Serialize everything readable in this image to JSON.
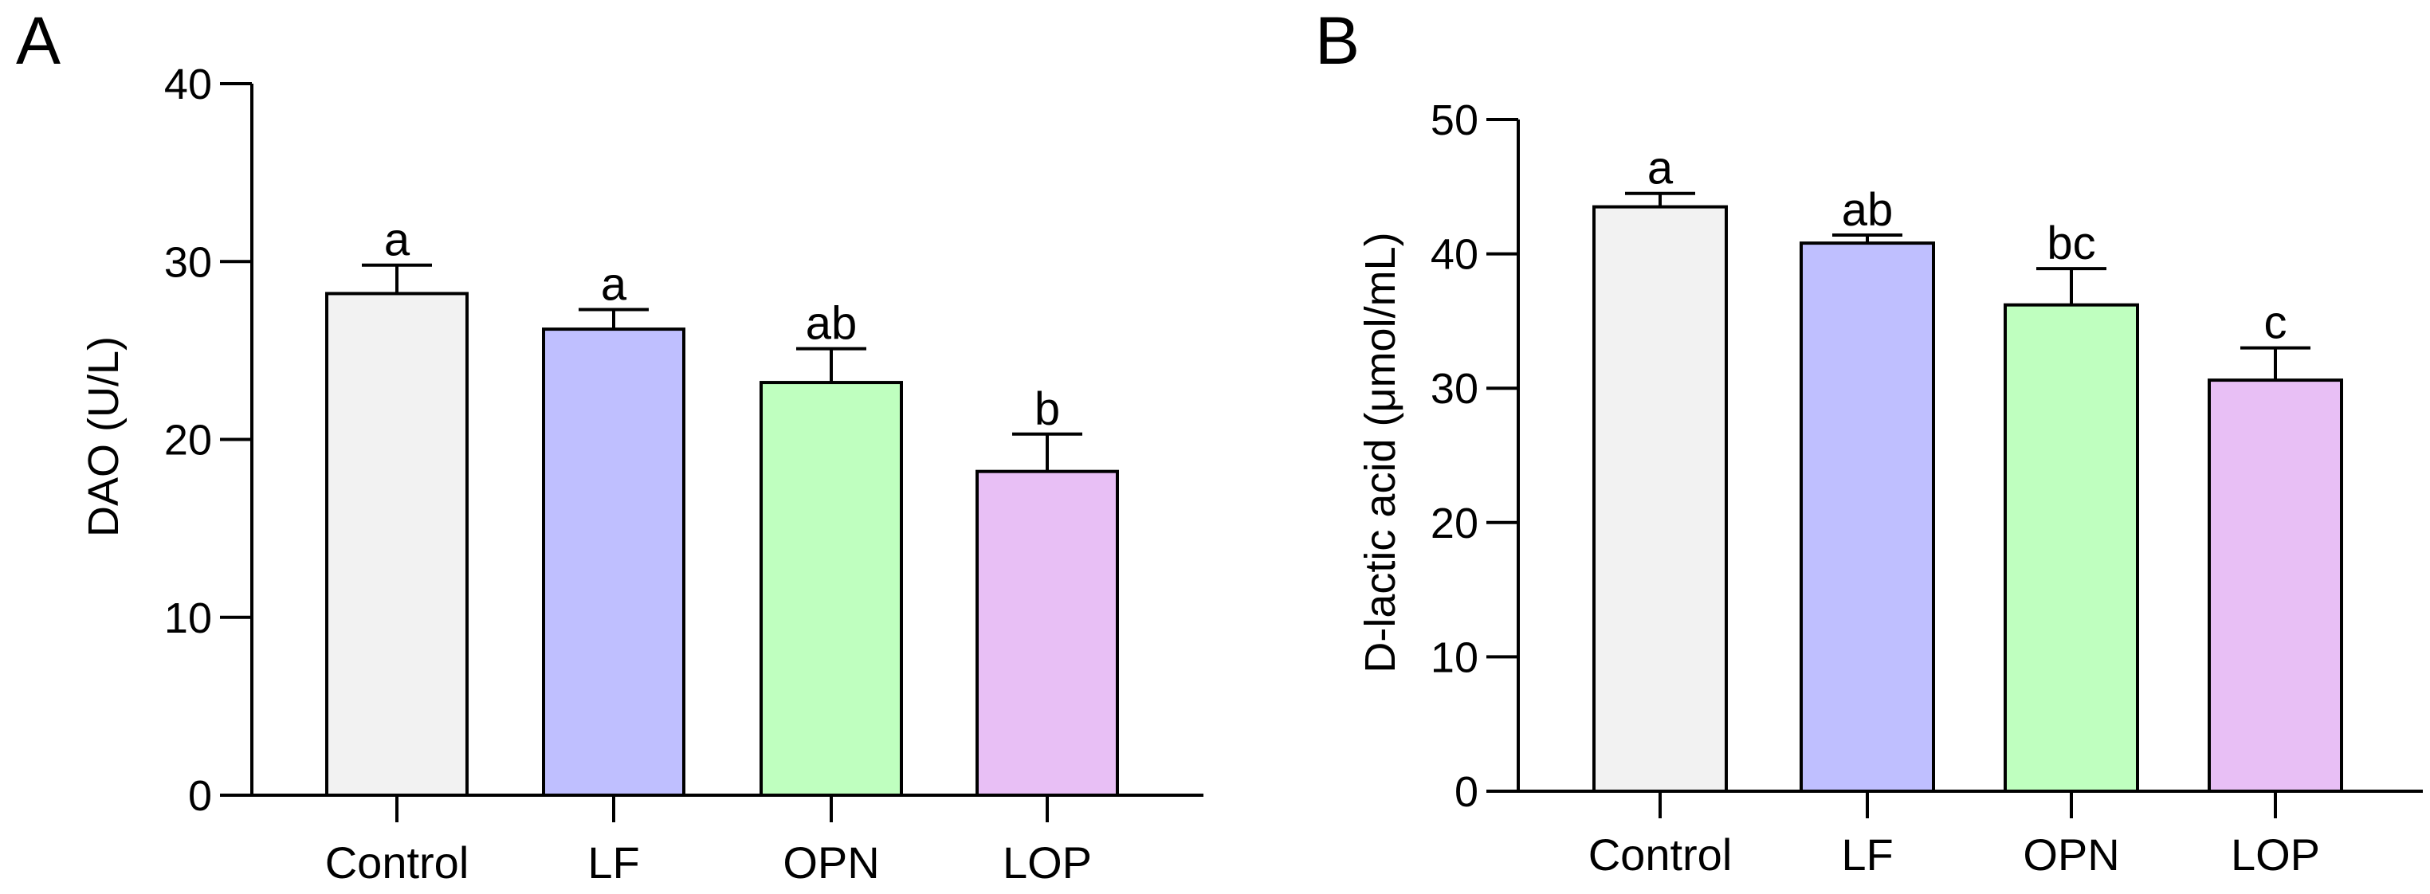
{
  "chart_data": [
    {
      "panel": "A",
      "type": "bar",
      "ylabel": "DAO (U/L)",
      "xlabel": "",
      "ylim": [
        0,
        40
      ],
      "yticks": [
        0,
        10,
        20,
        30,
        40
      ],
      "categories": [
        "Control",
        "LF",
        "OPN",
        "LOP"
      ],
      "values": [
        28.2,
        26.2,
        23.2,
        18.2
      ],
      "errors": [
        1.6,
        1.1,
        1.9,
        2.1
      ],
      "significance": [
        "a",
        "a",
        "ab",
        "b"
      ],
      "colors": [
        "#f2f2f2",
        "#bfbfff",
        "#bfffbf",
        "#e8bff5"
      ]
    },
    {
      "panel": "B",
      "type": "bar",
      "ylabel": "D-lactic acid (μmol/mL)",
      "xlabel": "",
      "ylim": [
        0,
        50
      ],
      "yticks": [
        0,
        10,
        20,
        30,
        40,
        50
      ],
      "categories": [
        "Control",
        "LF",
        "OPN",
        "LOP"
      ],
      "values": [
        43.5,
        40.8,
        36.2,
        30.6
      ],
      "errors": [
        1.0,
        0.6,
        2.7,
        2.4
      ],
      "significance": [
        "a",
        "ab",
        "bc",
        "c"
      ],
      "colors": [
        "#f2f2f2",
        "#bfbfff",
        "#bfffbf",
        "#e8bff5"
      ]
    }
  ]
}
